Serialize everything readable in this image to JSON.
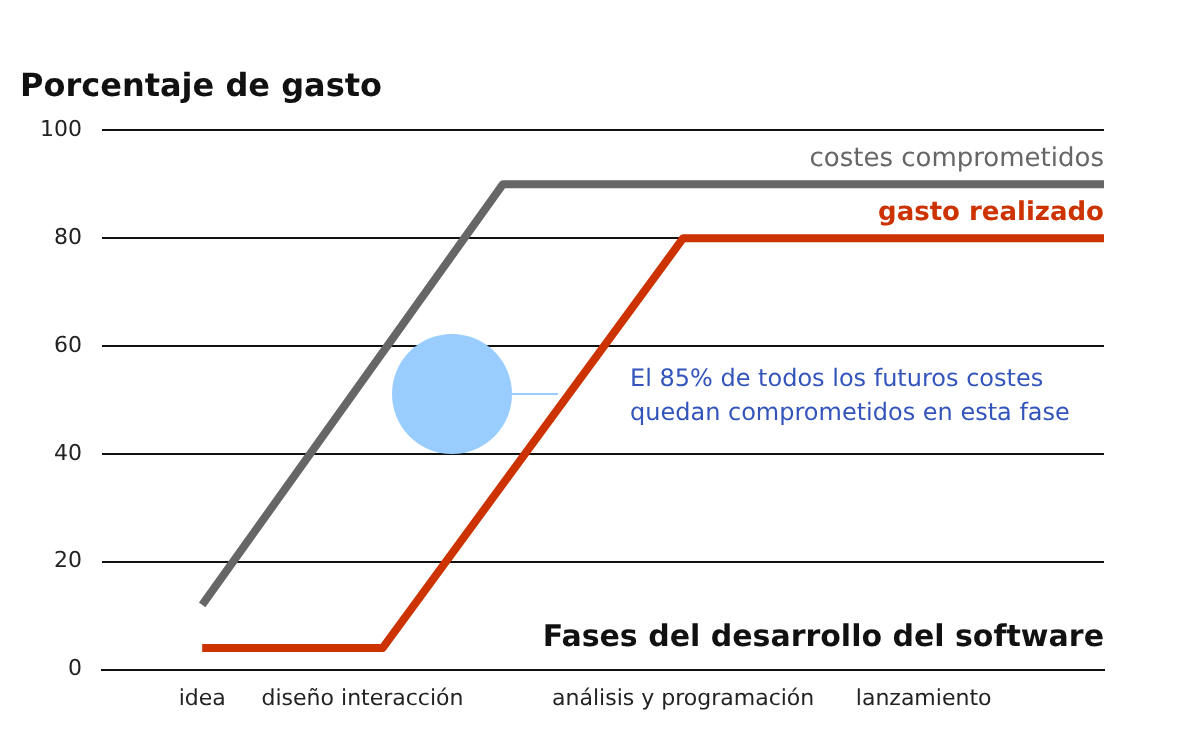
{
  "chart_data": {
    "type": "line",
    "title": "Porcentaje de gasto",
    "xlabel": "Fases del desarrollo del software",
    "categories": [
      null,
      null,
      null,
      null,
      null,
      "idea",
      null,
      null,
      null,
      null,
      null,
      null,
      null,
      "diseño interacción",
      null,
      null,
      null,
      null,
      null,
      null,
      null,
      null,
      null,
      null,
      null,
      null,
      null,
      null,
      null,
      "análisis y programación",
      null,
      null,
      null,
      null,
      null,
      null,
      null,
      null,
      null,
      null,
      null,
      "lanzamiento",
      null,
      null,
      null,
      null,
      null,
      null,
      null,
      null,
      null
    ],
    "series": [
      {
        "name": "costes comprometidos",
        "color": "#666666",
        "values": [
          null,
          null,
          null,
          null,
          null,
          12,
          null,
          null,
          null,
          null,
          null,
          null,
          null,
          null,
          null,
          null,
          null,
          null,
          null,
          null,
          90,
          null,
          null,
          null,
          null,
          null,
          null,
          null,
          null,
          null,
          null,
          null,
          null,
          null,
          null,
          null,
          null,
          null,
          null,
          null,
          null,
          null,
          null,
          null,
          null,
          null,
          null,
          null,
          null,
          null,
          90
        ]
      },
      {
        "name": "gasto realizado",
        "color": "#cc3300",
        "values": [
          null,
          null,
          null,
          null,
          null,
          4,
          null,
          null,
          null,
          null,
          null,
          null,
          null,
          null,
          4,
          null,
          null,
          null,
          null,
          null,
          null,
          null,
          null,
          null,
          null,
          null,
          null,
          null,
          null,
          80,
          null,
          null,
          null,
          null,
          null,
          null,
          null,
          null,
          null,
          null,
          null,
          null,
          null,
          null,
          null,
          null,
          null,
          null,
          null,
          null,
          80
        ]
      }
    ],
    "ylim": [
      0,
      100
    ],
    "yticks": [
      0,
      20,
      40,
      60,
      80,
      100
    ],
    "grid": "y",
    "marker": "none",
    "line_style": "solid",
    "annotations": [
      "El 85% de todos los futuros costes quedan comprometidos en esta fase"
    ]
  }
}
